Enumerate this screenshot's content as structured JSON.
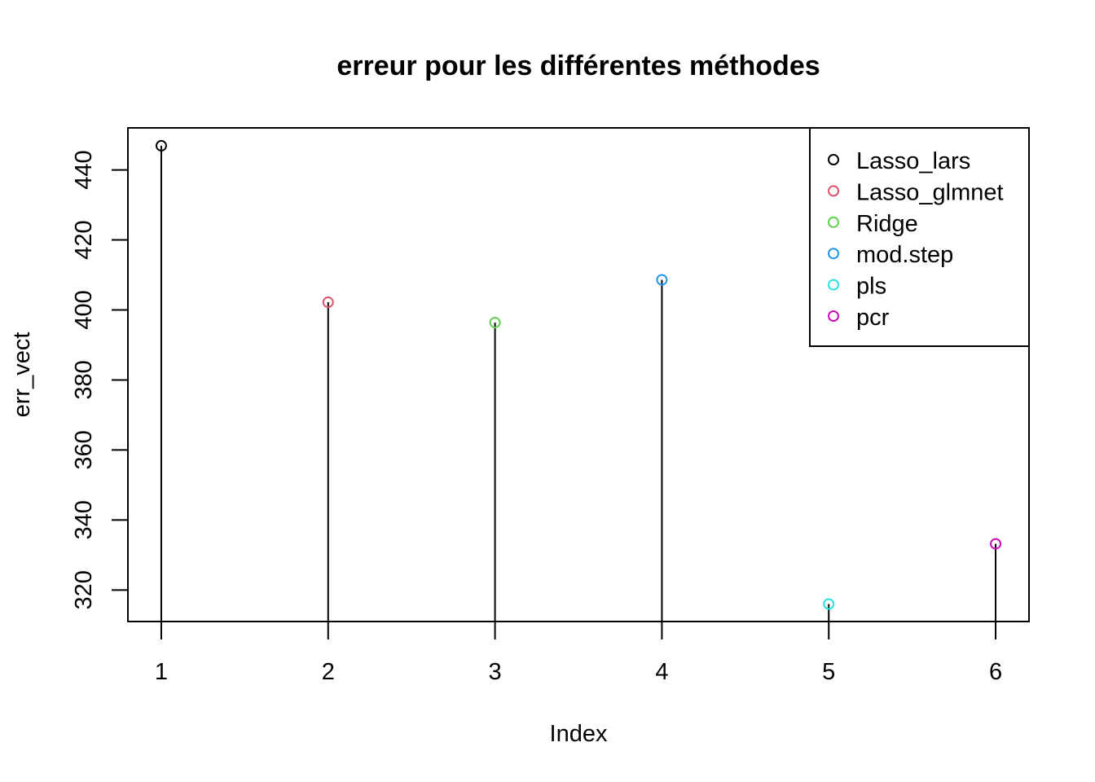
{
  "chart_data": {
    "type": "scatter",
    "title": "erreur pour les différentes méthodes",
    "xlabel": "Index",
    "ylabel": "err_vect",
    "x": [
      1,
      2,
      3,
      4,
      5,
      6
    ],
    "values": [
      446.9,
      402.2,
      396.4,
      408.6,
      316.0,
      333.2
    ],
    "point_colors": [
      "#000000",
      "#DF536B",
      "#61D04F",
      "#2297E6",
      "#28E2E5",
      "#CD0BBC"
    ],
    "xlim": [
      0.8,
      6.2
    ],
    "ylim": [
      311,
      452
    ],
    "x_ticks": [
      "1",
      "2",
      "3",
      "4",
      "5",
      "6"
    ],
    "y_ticks": [
      "320",
      "340",
      "360",
      "380",
      "400",
      "420",
      "440"
    ],
    "grid": false,
    "legend_position": "top-right",
    "legend": [
      {
        "label": "Lasso_lars",
        "color": "#000000"
      },
      {
        "label": "Lasso_glmnet",
        "color": "#DF536B"
      },
      {
        "label": "Ridge",
        "color": "#61D04F"
      },
      {
        "label": "mod.step",
        "color": "#2297E6"
      },
      {
        "label": "pls",
        "color": "#28E2E5"
      },
      {
        "label": "pcr",
        "color": "#CD0BBC"
      }
    ]
  }
}
